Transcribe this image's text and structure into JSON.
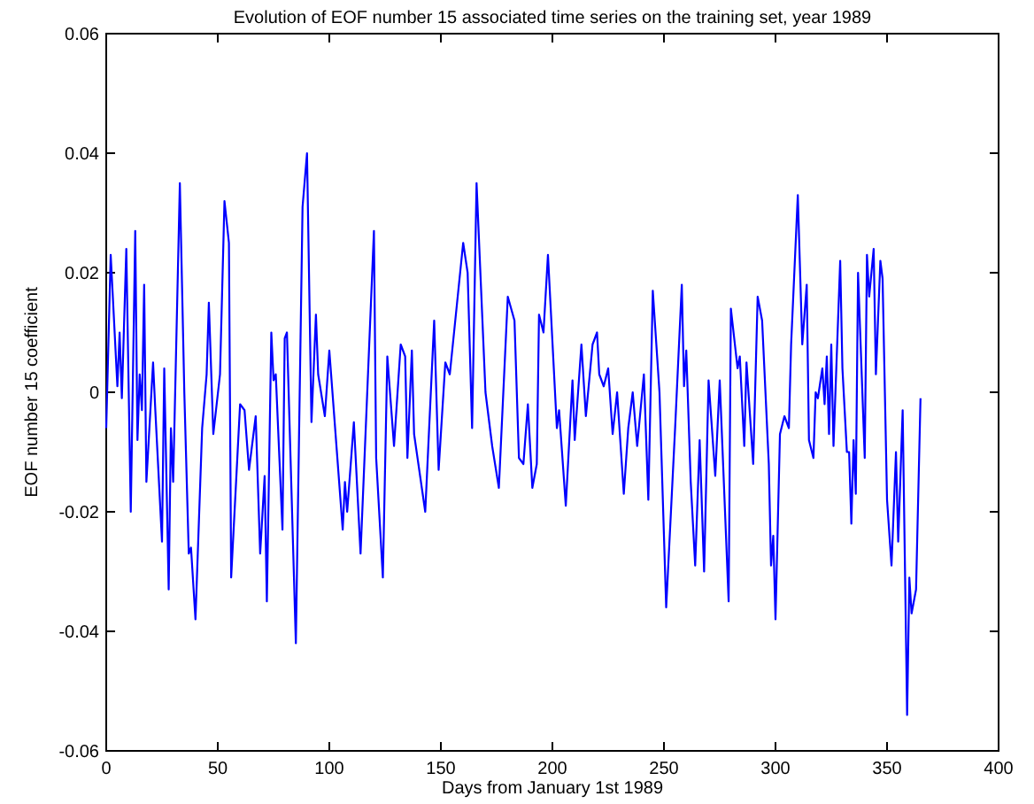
{
  "chart_data": {
    "type": "line",
    "title": "Evolution of EOF number 15 associated time series on the training set, year 1989",
    "xlabel": "Days from January 1st 1989",
    "ylabel": "EOF number 15 coefficient",
    "xlim": [
      0,
      400
    ],
    "xticks": [
      0,
      50,
      100,
      150,
      200,
      250,
      300,
      350,
      400
    ],
    "ylim": [
      -0.06,
      0.06
    ],
    "yticks": [
      -0.06,
      -0.04,
      -0.02,
      0,
      0.02,
      0.04,
      0.06
    ],
    "grid": false,
    "line_style": "solid",
    "marker": "none",
    "series": [
      {
        "color": "#0000ff",
        "x": [
          0,
          2,
          5,
          6,
          7,
          9,
          11,
          13,
          14,
          15,
          16,
          17,
          18,
          21,
          22,
          25,
          26,
          28,
          29,
          30,
          33,
          35,
          37,
          38,
          40,
          43,
          45,
          46,
          48,
          51,
          53,
          55,
          56,
          60,
          62,
          64,
          67,
          69,
          71,
          72,
          74,
          75,
          76,
          79,
          80,
          81,
          85,
          88,
          90,
          92,
          94,
          95,
          98,
          100,
          106,
          107,
          108,
          111,
          114,
          120,
          121,
          124,
          126,
          129,
          132,
          134,
          135,
          137,
          138,
          143,
          147,
          149,
          152,
          154,
          157,
          160,
          162,
          164,
          166,
          170,
          173,
          176,
          180,
          183,
          185,
          187,
          189,
          191,
          193,
          194,
          196,
          198,
          202,
          203,
          206,
          209,
          210,
          213,
          215,
          218,
          220,
          221,
          223,
          225,
          227,
          229,
          232,
          234,
          236,
          238,
          241,
          243,
          245,
          248,
          251,
          255,
          258,
          259,
          260,
          262,
          264,
          266,
          268,
          270,
          273,
          275,
          279,
          280,
          283,
          284,
          286,
          287,
          290,
          292,
          294,
          297,
          298,
          299,
          300,
          302,
          304,
          306,
          307,
          310,
          312,
          314,
          315,
          317,
          318,
          319,
          321,
          322,
          323,
          324,
          325,
          326,
          329,
          330,
          332,
          333,
          334,
          335,
          336,
          337,
          340,
          341,
          342,
          344,
          345,
          347,
          348,
          350,
          352,
          354,
          355,
          357,
          359,
          360,
          361,
          363,
          365
        ],
        "values": [
          -0.006,
          0.023,
          0.001,
          0.01,
          -0.001,
          0.024,
          -0.02,
          0.027,
          -0.008,
          0.003,
          -0.003,
          0.018,
          -0.015,
          0.005,
          -0.003,
          -0.025,
          0.004,
          -0.033,
          -0.006,
          -0.015,
          0.035,
          0,
          -0.027,
          -0.026,
          -0.038,
          -0.006,
          0.003,
          0.015,
          -0.007,
          0.003,
          0.032,
          0.025,
          -0.031,
          -0.002,
          -0.003,
          -0.013,
          -0.004,
          -0.027,
          -0.014,
          -0.035,
          0.01,
          0.002,
          0.003,
          -0.023,
          0.009,
          0.01,
          -0.042,
          0.031,
          0.04,
          -0.005,
          0.013,
          0.003,
          -0.004,
          0.007,
          -0.023,
          -0.015,
          -0.02,
          -0.005,
          -0.027,
          0.027,
          -0.011,
          -0.031,
          0.006,
          -0.009,
          0.008,
          0.006,
          -0.011,
          0.007,
          -0.007,
          -0.02,
          0.012,
          -0.013,
          0.005,
          0.003,
          0.014,
          0.025,
          0.02,
          -0.006,
          0.035,
          0,
          -0.009,
          -0.016,
          0.016,
          0.012,
          -0.011,
          -0.012,
          -0.002,
          -0.016,
          -0.012,
          0.013,
          0.01,
          0.023,
          -0.006,
          -0.003,
          -0.019,
          0.002,
          -0.008,
          0.008,
          -0.004,
          0.008,
          0.01,
          0.003,
          0.001,
          0.004,
          -0.007,
          0,
          -0.017,
          -0.006,
          0,
          -0.009,
          0.003,
          -0.018,
          0.017,
          0,
          -0.036,
          -0.006,
          0.018,
          0.001,
          0.007,
          -0.015,
          -0.029,
          -0.008,
          -0.03,
          0.002,
          -0.014,
          0.002,
          -0.035,
          0.014,
          0.004,
          0.006,
          -0.009,
          0.005,
          -0.012,
          0.016,
          0.012,
          -0.012,
          -0.029,
          -0.024,
          -0.038,
          -0.007,
          -0.004,
          -0.006,
          0.008,
          0.033,
          0.008,
          0.018,
          -0.008,
          -0.011,
          0,
          -0.001,
          0.004,
          -0.002,
          0.006,
          -0.007,
          0.008,
          -0.009,
          0.022,
          0.004,
          -0.01,
          -0.01,
          -0.022,
          -0.008,
          -0.017,
          0.02,
          -0.011,
          0.023,
          0.016,
          0.024,
          0.003,
          0.022,
          0.019,
          -0.018,
          -0.029,
          -0.01,
          -0.025,
          -0.003,
          -0.054,
          -0.031,
          -0.037,
          -0.033,
          -0.001
        ]
      }
    ]
  }
}
